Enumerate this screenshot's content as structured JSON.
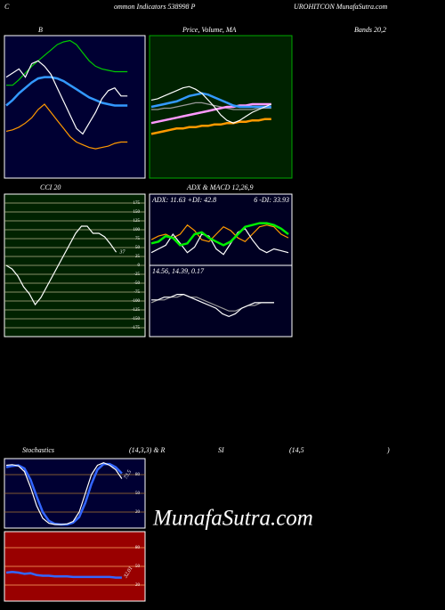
{
  "labels": {
    "top": [
      "C",
      "ommon  Indicators 538998 P",
      "UROHITCON  MunafaSutra.com"
    ],
    "row1": [
      "B",
      "Price, Volume, MA",
      "Bands 20,2"
    ],
    "row2": [
      "CCI 20",
      "ADX  & MACD 12,26,9"
    ],
    "row3": [
      "Stochastics",
      "(14,3,3) & R",
      "SI",
      "(14,5",
      ")"
    ],
    "watermark": "MunafaSutra.com"
  },
  "chart_data": [
    {
      "type": "line",
      "ylim": [
        0,
        100
      ],
      "series": [
        {
          "color": "#00cc00",
          "values": [
            66,
            66,
            70,
            75,
            80,
            84,
            88,
            92,
            96,
            98,
            99,
            96,
            90,
            84,
            80,
            78,
            77,
            76,
            76,
            76
          ]
        },
        {
          "color": "#3399ff",
          "values": [
            51,
            55,
            60,
            64,
            68,
            71,
            72,
            72,
            71,
            69,
            66,
            63,
            60,
            57,
            55,
            53,
            52,
            51,
            51,
            51
          ]
        },
        {
          "color": "#ff9900",
          "values": [
            32,
            33,
            35,
            38,
            42,
            48,
            52,
            46,
            40,
            34,
            28,
            24,
            22,
            20,
            19,
            20,
            21,
            23,
            24,
            24
          ]
        },
        {
          "color": "#ffffff",
          "values": [
            72,
            75,
            78,
            72,
            82,
            84,
            80,
            74,
            64,
            54,
            44,
            34,
            30,
            38,
            46,
            56,
            62,
            64,
            58,
            58
          ]
        }
      ]
    },
    {
      "type": "line",
      "ylim": [
        0,
        100
      ],
      "series": [
        {
          "color": "#999999",
          "values": [
            48,
            48,
            49,
            49,
            50,
            51,
            52,
            53,
            53,
            52,
            51,
            50,
            49,
            48,
            48,
            48,
            48,
            49,
            49,
            49
          ]
        },
        {
          "color": "#ff99ff",
          "values": [
            38,
            39,
            40,
            41,
            42,
            43,
            44,
            45,
            46,
            47,
            48,
            49,
            50,
            50,
            51,
            51,
            52,
            52,
            52,
            52
          ]
        },
        {
          "color": "#ff9900",
          "values": [
            30,
            31,
            32,
            33,
            34,
            34,
            35,
            35,
            36,
            36,
            37,
            37,
            38,
            38,
            39,
            39,
            40,
            40,
            41,
            41
          ]
        },
        {
          "color": "#3399ff",
          "values": [
            50,
            51,
            52,
            53,
            54,
            56,
            58,
            59,
            60,
            59,
            57,
            55,
            53,
            51,
            50,
            50,
            50,
            50,
            50,
            50
          ]
        },
        {
          "color": "#ffffff",
          "values": [
            55,
            56,
            58,
            60,
            62,
            64,
            65,
            63,
            60,
            55,
            50,
            44,
            40,
            38,
            40,
            43,
            46,
            48,
            50,
            52
          ]
        }
      ]
    },
    {
      "type": "line",
      "ylim": [
        -190,
        190
      ],
      "yticks": [
        175,
        150,
        125,
        100,
        75,
        50,
        25,
        0,
        -25,
        -50,
        -75,
        -100,
        -125,
        -150,
        -175
      ],
      "grid": true,
      "last_label": true,
      "series": [
        {
          "color": "#ffffff",
          "values": [
            0,
            -10,
            -30,
            -60,
            -80,
            -110,
            -90,
            -60,
            -30,
            0,
            30,
            60,
            90,
            110,
            110,
            90,
            90,
            80,
            60,
            37
          ]
        }
      ]
    },
    {
      "type": "line",
      "ylim": [
        0,
        60
      ],
      "title": "ADX: 11.63  +DI: 42.8",
      "subtitle": "6  -DI: 33.93",
      "series": [
        {
          "color": "#ff9900",
          "values": [
            24,
            28,
            30,
            26,
            30,
            40,
            34,
            24,
            22,
            30,
            38,
            34,
            26,
            22,
            30,
            38,
            40,
            38,
            30,
            26
          ]
        },
        {
          "color": "#ffffff",
          "values": [
            10,
            14,
            18,
            30,
            20,
            10,
            16,
            30,
            28,
            14,
            8,
            20,
            32,
            36,
            24,
            14,
            10,
            14,
            12,
            10
          ]
        },
        {
          "color": "#00ee00",
          "values": [
            20,
            22,
            28,
            26,
            18,
            20,
            30,
            32,
            26,
            22,
            18,
            22,
            30,
            38,
            40,
            42,
            42,
            40,
            36,
            30
          ]
        }
      ]
    },
    {
      "type": "line",
      "ylim": [
        -10,
        10
      ],
      "title": "14.56,  14.39,  0.17",
      "series": [
        {
          "color": "#999999",
          "values": [
            1,
            2,
            2,
            3,
            3,
            4,
            3,
            3,
            2,
            1,
            0,
            -1,
            -2,
            -2,
            -1,
            0,
            0,
            1,
            1,
            1
          ]
        },
        {
          "color": "#ffffff",
          "values": [
            2,
            2,
            3,
            3,
            4,
            4,
            3,
            2,
            1,
            0,
            -1,
            -3,
            -4,
            -3,
            -1,
            0,
            1,
            1,
            1,
            1
          ]
        }
      ]
    },
    {
      "type": "line",
      "ylim": [
        0,
        100
      ],
      "yticks": [
        80,
        50,
        20
      ],
      "grid": true,
      "last_label": true,
      "series": [
        {
          "color": "#3366ff",
          "values": [
            92,
            94,
            95,
            90,
            72,
            45,
            20,
            6,
            1,
            0,
            0,
            3,
            12,
            35,
            65,
            88,
            97,
            97,
            92,
            82
          ]
        },
        {
          "color": "#ffffff",
          "values": [
            95,
            96,
            94,
            85,
            60,
            30,
            10,
            2,
            0,
            0,
            1,
            5,
            20,
            50,
            80,
            95,
            99,
            95,
            88,
            73.5
          ]
        }
      ]
    },
    {
      "type": "line",
      "ylim": [
        0,
        100
      ],
      "yticks": [
        80,
        50,
        20
      ],
      "grid": true,
      "last_label": true,
      "series": [
        {
          "color": "#3366ff",
          "values": [
            40,
            41,
            40,
            38,
            39,
            36,
            35,
            35,
            34,
            34,
            34,
            33,
            33,
            33,
            33,
            33,
            33,
            33,
            32,
            32.01
          ]
        }
      ]
    }
  ]
}
